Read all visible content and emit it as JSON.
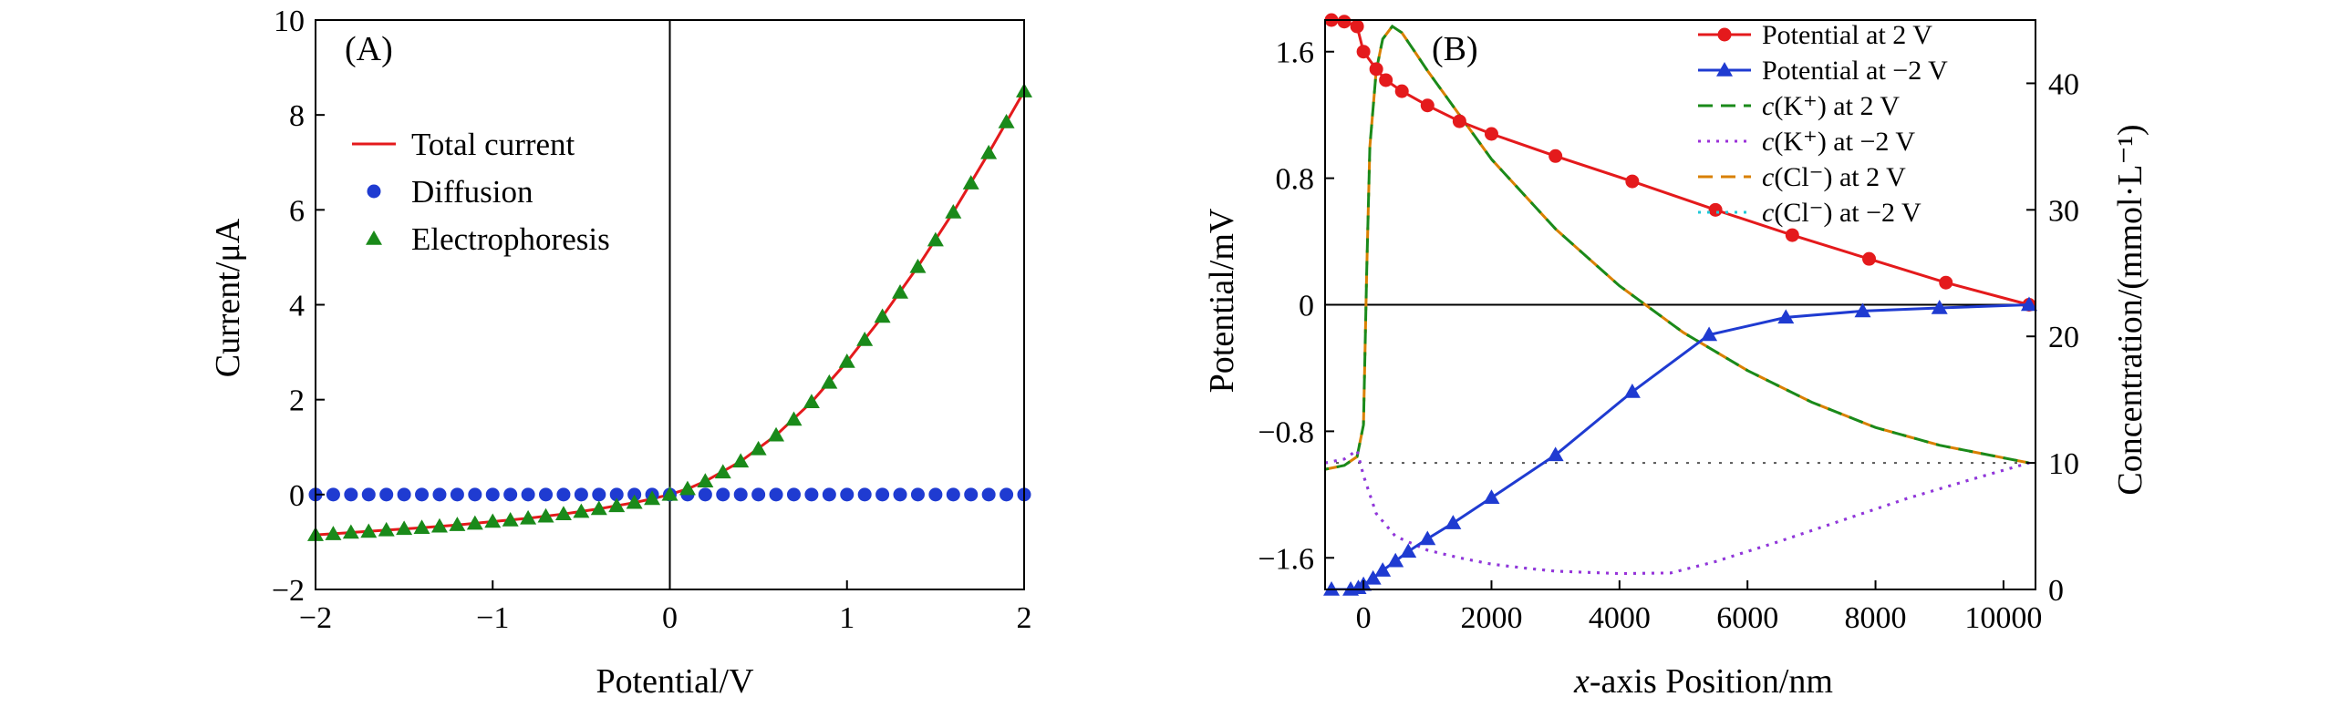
{
  "chart_data": [
    {
      "panel": "(A)",
      "type": "line",
      "xlabel": "Potential/V",
      "ylabel": "Current/μA",
      "xlim": [
        -2,
        2
      ],
      "ylim": [
        -2,
        10
      ],
      "xticks": [
        -2,
        -1,
        0,
        1,
        2
      ],
      "xtick_labels": [
        "−2",
        "−1",
        "0",
        "1",
        "2"
      ],
      "yticks": [
        -2,
        0,
        2,
        4,
        6,
        8,
        10
      ],
      "ytick_labels": [
        "−2",
        "0",
        "2",
        "4",
        "6",
        "8",
        "10"
      ],
      "legend_position": "upper-left",
      "series": [
        {
          "name": "Total current",
          "style": "line",
          "color": "#e41a1c",
          "x": [
            -2.0,
            -1.8,
            -1.6,
            -1.4,
            -1.2,
            -1.0,
            -0.8,
            -0.6,
            -0.4,
            -0.2,
            -0.1,
            0.0,
            0.1,
            0.2,
            0.4,
            0.6,
            0.8,
            1.0,
            1.2,
            1.4,
            1.6,
            1.8,
            2.0
          ],
          "y": [
            -0.85,
            -0.8,
            -0.75,
            -0.7,
            -0.64,
            -0.57,
            -0.5,
            -0.41,
            -0.3,
            -0.17,
            -0.09,
            0.0,
            0.12,
            0.28,
            0.7,
            1.25,
            1.95,
            2.8,
            3.75,
            4.8,
            5.95,
            7.2,
            8.5
          ]
        },
        {
          "name": "Diffusion",
          "style": "circle-markers",
          "color": "#1f3bd1",
          "x": [
            -2.0,
            -1.9,
            -1.8,
            -1.7,
            -1.6,
            -1.5,
            -1.4,
            -1.3,
            -1.2,
            -1.1,
            -1.0,
            -0.9,
            -0.8,
            -0.7,
            -0.6,
            -0.5,
            -0.4,
            -0.3,
            -0.2,
            -0.1,
            0.0,
            0.1,
            0.2,
            0.3,
            0.4,
            0.5,
            0.6,
            0.7,
            0.8,
            0.9,
            1.0,
            1.1,
            1.2,
            1.3,
            1.4,
            1.5,
            1.6,
            1.7,
            1.8,
            1.9,
            2.0
          ],
          "y": [
            0,
            0,
            0,
            0,
            0,
            0,
            0,
            0,
            0,
            0,
            0,
            0,
            0,
            0,
            0,
            0,
            0,
            0,
            0,
            0,
            0,
            0,
            0,
            0,
            0,
            0,
            0,
            0,
            0,
            0,
            0,
            0,
            0,
            0,
            0,
            0,
            0,
            0,
            0,
            0,
            0
          ]
        },
        {
          "name": "Electrophoresis",
          "style": "triangle-markers",
          "color": "#1a8a1a",
          "x": [
            -2.0,
            -1.9,
            -1.8,
            -1.7,
            -1.6,
            -1.5,
            -1.4,
            -1.3,
            -1.2,
            -1.1,
            -1.0,
            -0.9,
            -0.8,
            -0.7,
            -0.6,
            -0.5,
            -0.4,
            -0.3,
            -0.2,
            -0.1,
            0.0,
            0.1,
            0.2,
            0.3,
            0.4,
            0.5,
            0.6,
            0.7,
            0.8,
            0.9,
            1.0,
            1.1,
            1.2,
            1.3,
            1.4,
            1.5,
            1.6,
            1.7,
            1.8,
            1.9,
            2.0
          ],
          "y": [
            -0.85,
            -0.83,
            -0.8,
            -0.78,
            -0.75,
            -0.72,
            -0.7,
            -0.67,
            -0.64,
            -0.61,
            -0.57,
            -0.54,
            -0.5,
            -0.46,
            -0.41,
            -0.36,
            -0.3,
            -0.24,
            -0.17,
            -0.09,
            0.0,
            0.12,
            0.28,
            0.47,
            0.7,
            0.96,
            1.25,
            1.58,
            1.95,
            2.36,
            2.8,
            3.26,
            3.75,
            4.26,
            4.8,
            5.36,
            5.95,
            6.56,
            7.2,
            7.85,
            8.5
          ]
        }
      ]
    },
    {
      "panel": "(B)",
      "type": "line",
      "xlabel_italic": "x",
      "xlabel_rest": "-axis Position/nm",
      "ylabel": "Potential/mV",
      "y2label": "Concentration/(mmol·L⁻¹)",
      "xlim": [
        -600,
        10500
      ],
      "ylim": [
        -1.8,
        1.8
      ],
      "y2lim": [
        0,
        45
      ],
      "xticks": [
        0,
        2000,
        4000,
        6000,
        8000,
        10000
      ],
      "xtick_labels": [
        "0",
        "2000",
        "4000",
        "6000",
        "8000",
        "10000"
      ],
      "yticks": [
        -1.6,
        -0.8,
        0,
        0.8,
        1.6
      ],
      "ytick_labels": [
        "−1.6",
        "−0.8",
        "0",
        "0.8",
        "1.6"
      ],
      "y2ticks": [
        0,
        10,
        20,
        30,
        40
      ],
      "y2tick_labels": [
        "0",
        "10",
        "20",
        "30",
        "40"
      ],
      "legend_position": "top-right",
      "reference_line": {
        "axis": "y2",
        "value": 10,
        "style": "dotted",
        "color": "#555555"
      },
      "series": [
        {
          "name": "Potential at 2 V",
          "axis": "y",
          "style": "line-circle",
          "color": "#e41a1c",
          "x": [
            -500,
            -300,
            -100,
            0,
            200,
            350,
            600,
            1000,
            1500,
            2000,
            3000,
            4200,
            5500,
            6700,
            7900,
            9100,
            10400
          ],
          "y": [
            1.8,
            1.79,
            1.76,
            1.6,
            1.49,
            1.42,
            1.35,
            1.26,
            1.16,
            1.08,
            0.94,
            0.78,
            0.6,
            0.44,
            0.29,
            0.14,
            0.0
          ]
        },
        {
          "name": "Potential at −2 V",
          "axis": "y",
          "style": "line-triangle",
          "color": "#1f3bd1",
          "x": [
            -500,
            -200,
            -80,
            0,
            150,
            300,
            500,
            700,
            1000,
            1400,
            2000,
            3000,
            4200,
            5400,
            6600,
            7800,
            9000,
            10400
          ],
          "y": [
            -1.8,
            -1.8,
            -1.79,
            -1.77,
            -1.73,
            -1.68,
            -1.62,
            -1.56,
            -1.48,
            -1.38,
            -1.22,
            -0.95,
            -0.55,
            -0.19,
            -0.08,
            -0.04,
            -0.02,
            0.0
          ]
        },
        {
          "name": "c(K⁺) at 2 V",
          "axis": "y2",
          "style": "dashed",
          "color": "#1a8a1a",
          "x": [
            -600,
            -300,
            -100,
            0,
            50,
            100,
            200,
            300,
            450,
            600,
            800,
            1000,
            1500,
            2000,
            3000,
            4000,
            5000,
            6000,
            7000,
            8000,
            9000,
            10400
          ],
          "y": [
            9.5,
            9.8,
            10.5,
            13,
            25,
            35,
            41,
            43.5,
            44.5,
            44,
            42.5,
            41,
            37.5,
            34,
            28.5,
            24,
            20.3,
            17.3,
            14.8,
            12.8,
            11.4,
            10
          ]
        },
        {
          "name": "c(K⁺) at −2 V",
          "axis": "y2",
          "style": "dotted",
          "color": "#9b30d9",
          "x": [
            -600,
            -300,
            -100,
            0,
            200,
            500,
            1000,
            1500,
            2000,
            2500,
            3000,
            4000,
            4800,
            5500,
            6500,
            7500,
            8500,
            9500,
            10400
          ],
          "y": [
            10,
            10.3,
            11,
            9,
            6,
            4.2,
            3.1,
            2.5,
            2.0,
            1.7,
            1.45,
            1.25,
            1.3,
            2.2,
            3.8,
            5.5,
            7.2,
            8.7,
            10
          ]
        },
        {
          "name": "c(Cl⁻) at 2 V",
          "axis": "y2",
          "style": "dashed",
          "color": "#d98000",
          "x": [
            -600,
            -300,
            -100,
            0,
            50,
            100,
            200,
            300,
            450,
            600,
            800,
            1000,
            1500,
            2000,
            3000,
            4000,
            5000,
            6000,
            7000,
            8000,
            9000,
            10400
          ],
          "y": [
            9.5,
            9.8,
            10.5,
            13,
            25,
            35,
            41,
            43.5,
            44.5,
            44,
            42.5,
            41,
            37.5,
            34,
            28.5,
            24,
            20.3,
            17.3,
            14.8,
            12.8,
            11.4,
            10
          ]
        },
        {
          "name": "c(Cl⁻) at −2 V",
          "axis": "y2",
          "style": "dotted",
          "color": "#1ec8d8",
          "x": [
            -600,
            -300,
            -100,
            0,
            200,
            500,
            1000,
            1500,
            2000,
            2500,
            3000,
            4000,
            4800,
            5500,
            6500,
            7500,
            8500,
            9500,
            10400
          ],
          "y": [
            10,
            10.3,
            11,
            9,
            6,
            4.2,
            3.1,
            2.5,
            2.0,
            1.7,
            1.45,
            1.25,
            1.3,
            2.2,
            3.8,
            5.5,
            7.2,
            8.7,
            10
          ]
        }
      ]
    }
  ]
}
